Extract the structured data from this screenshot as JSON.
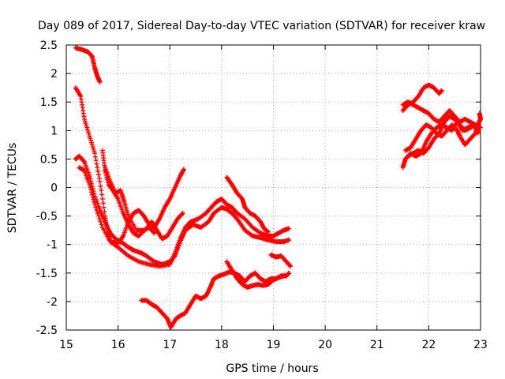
{
  "chart_data": {
    "type": "scatter",
    "title": "Day 089 of 2017, Sidereal Day-to-day VTEC variation (SDTVAR) for receiver kraw",
    "xlabel": "GPS time / hours",
    "ylabel": "SDTVAR / TECUs",
    "xlim": [
      15,
      23
    ],
    "ylim": [
      -2.5,
      2.5
    ],
    "xticks": [
      15,
      16,
      17,
      18,
      19,
      20,
      21,
      22,
      23
    ],
    "xtick_labels": [
      "15",
      "16",
      "17",
      "18",
      "19",
      "20",
      "21",
      "22",
      "23"
    ],
    "yticks": [
      -2.5,
      -2,
      -1.5,
      -1,
      -0.5,
      0,
      0.5,
      1,
      1.5,
      2,
      2.5
    ],
    "ytick_labels": [
      "-2.5",
      "-2",
      "-1.5",
      "-1",
      "-0.5",
      "0",
      "0.5",
      "1",
      "1.5",
      "2",
      "2.5"
    ],
    "grid": true,
    "marker": "+",
    "color": "#ff0000",
    "series": [
      {
        "name": "s1",
        "points": [
          [
            15.18,
            2.45
          ],
          [
            15.3,
            2.42
          ],
          [
            15.42,
            2.38
          ],
          [
            15.5,
            2.3
          ],
          [
            15.55,
            2.1
          ],
          [
            15.6,
            1.95
          ],
          [
            15.65,
            1.85
          ]
        ]
      },
      {
        "name": "s2",
        "points": [
          [
            15.18,
            1.75
          ],
          [
            15.28,
            1.6
          ],
          [
            15.35,
            1.2
          ],
          [
            15.45,
            0.9
          ],
          [
            15.55,
            0.6
          ],
          [
            15.65,
            0.1
          ],
          [
            15.75,
            -0.5
          ],
          [
            15.8,
            -0.8
          ],
          [
            15.85,
            -0.95
          ],
          [
            16.0,
            -0.98
          ],
          [
            16.1,
            -0.85
          ],
          [
            16.2,
            -0.6
          ],
          [
            16.3,
            -0.45
          ],
          [
            16.4,
            -0.4
          ],
          [
            16.5,
            -0.5
          ],
          [
            16.6,
            -0.65
          ],
          [
            16.7,
            -0.7
          ],
          [
            16.8,
            -0.55
          ],
          [
            16.9,
            -0.35
          ],
          [
            17.0,
            -0.2
          ],
          [
            17.1,
            0.0
          ],
          [
            17.2,
            0.2
          ],
          [
            17.27,
            0.32
          ]
        ]
      },
      {
        "name": "s3",
        "points": [
          [
            15.18,
            0.5
          ],
          [
            15.25,
            0.55
          ],
          [
            15.35,
            0.45
          ],
          [
            15.45,
            0.2
          ],
          [
            15.55,
            -0.15
          ],
          [
            15.65,
            -0.4
          ],
          [
            15.75,
            -0.6
          ],
          [
            15.85,
            -0.8
          ],
          [
            15.95,
            -0.9
          ],
          [
            16.1,
            -0.98
          ],
          [
            16.2,
            -1.05
          ],
          [
            16.3,
            -1.1
          ],
          [
            16.45,
            -1.15
          ],
          [
            16.55,
            -1.2
          ],
          [
            16.7,
            -1.3
          ],
          [
            16.85,
            -1.35
          ],
          [
            17.0,
            -1.3
          ],
          [
            17.1,
            -1.2
          ],
          [
            17.2,
            -0.95
          ],
          [
            17.3,
            -0.75
          ],
          [
            17.45,
            -0.65
          ],
          [
            17.6,
            -0.7
          ],
          [
            17.75,
            -0.6
          ],
          [
            17.85,
            -0.45
          ],
          [
            18.0,
            -0.35
          ],
          [
            18.1,
            -0.38
          ],
          [
            18.2,
            -0.45
          ],
          [
            18.3,
            -0.55
          ],
          [
            18.45,
            -0.75
          ],
          [
            18.6,
            -0.85
          ],
          [
            18.75,
            -0.88
          ],
          [
            18.9,
            -0.92
          ],
          [
            19.05,
            -0.95
          ],
          [
            19.2,
            -0.95
          ],
          [
            19.3,
            -0.92
          ]
        ]
      },
      {
        "name": "s4",
        "points": [
          [
            15.25,
            0.35
          ],
          [
            15.35,
            0.3
          ],
          [
            15.45,
            0.05
          ],
          [
            15.55,
            -0.3
          ],
          [
            15.7,
            -0.7
          ],
          [
            15.85,
            -0.95
          ],
          [
            16.0,
            -1.05
          ],
          [
            16.2,
            -1.2
          ],
          [
            16.4,
            -1.3
          ],
          [
            16.6,
            -1.35
          ],
          [
            16.8,
            -1.38
          ],
          [
            17.0,
            -1.35
          ],
          [
            17.1,
            -1.15
          ],
          [
            17.2,
            -0.9
          ],
          [
            17.3,
            -0.7
          ],
          [
            17.4,
            -0.6
          ],
          [
            17.55,
            -0.55
          ],
          [
            17.7,
            -0.45
          ],
          [
            17.8,
            -0.35
          ],
          [
            17.9,
            -0.25
          ],
          [
            18.0,
            -0.2
          ],
          [
            18.1,
            -0.3
          ],
          [
            18.2,
            -0.35
          ],
          [
            18.3,
            -0.45
          ],
          [
            18.45,
            -0.55
          ],
          [
            18.6,
            -0.7
          ],
          [
            18.75,
            -0.8
          ],
          [
            18.9,
            -0.85
          ],
          [
            19.0,
            -0.85
          ],
          [
            19.1,
            -0.8
          ],
          [
            19.2,
            -0.75
          ],
          [
            19.3,
            -0.72
          ]
        ]
      },
      {
        "name": "s5",
        "points": [
          [
            15.7,
            0.65
          ],
          [
            15.75,
            0.3
          ],
          [
            15.82,
            0.05
          ],
          [
            15.9,
            -0.05
          ],
          [
            16.0,
            -0.2
          ],
          [
            16.1,
            -0.45
          ],
          [
            16.2,
            -0.65
          ],
          [
            16.3,
            -0.8
          ],
          [
            16.4,
            -0.85
          ],
          [
            16.55,
            -0.72
          ],
          [
            16.65,
            -0.6
          ],
          [
            16.75,
            -0.75
          ],
          [
            16.85,
            -0.9
          ],
          [
            16.95,
            -0.85
          ],
          [
            17.05,
            -0.7
          ],
          [
            17.15,
            -0.55
          ],
          [
            17.25,
            -0.45
          ]
        ]
      },
      {
        "name": "s6",
        "points": [
          [
            15.75,
            0.35
          ],
          [
            15.85,
            0.1
          ],
          [
            15.95,
            -0.1
          ],
          [
            16.05,
            -0.05
          ],
          [
            16.12,
            -0.25
          ],
          [
            16.2,
            -0.5
          ],
          [
            16.35,
            -0.75
          ],
          [
            16.5,
            -0.75
          ],
          [
            16.6,
            -0.7
          ],
          [
            16.7,
            -0.8
          ]
        ]
      },
      {
        "name": "s7",
        "points": [
          [
            16.45,
            -1.98
          ],
          [
            16.55,
            -1.98
          ],
          [
            16.65,
            -2.05
          ],
          [
            16.75,
            -2.1
          ],
          [
            16.85,
            -2.2
          ],
          [
            16.95,
            -2.3
          ],
          [
            17.02,
            -2.45
          ],
          [
            17.12,
            -2.3
          ],
          [
            17.2,
            -2.25
          ],
          [
            17.3,
            -2.2
          ],
          [
            17.4,
            -2.05
          ],
          [
            17.5,
            -1.9
          ],
          [
            17.6,
            -1.95
          ],
          [
            17.7,
            -1.9
          ],
          [
            17.78,
            -1.75
          ],
          [
            17.85,
            -1.6
          ],
          [
            17.95,
            -1.55
          ],
          [
            18.05,
            -1.52
          ],
          [
            18.15,
            -1.48
          ],
          [
            18.25,
            -1.5
          ],
          [
            18.35,
            -1.55
          ],
          [
            18.45,
            -1.65
          ],
          [
            18.55,
            -1.55
          ],
          [
            18.65,
            -1.5
          ],
          [
            18.75,
            -1.6
          ],
          [
            18.85,
            -1.65
          ],
          [
            18.95,
            -1.6
          ],
          [
            19.05,
            -1.6
          ],
          [
            19.15,
            -1.55
          ],
          [
            19.25,
            -1.55
          ],
          [
            19.3,
            -1.5
          ]
        ]
      },
      {
        "name": "s8",
        "points": [
          [
            18.1,
            -1.3
          ],
          [
            18.2,
            -1.45
          ],
          [
            18.3,
            -1.6
          ],
          [
            18.4,
            -1.7
          ],
          [
            18.5,
            -1.75
          ],
          [
            18.6,
            -1.72
          ],
          [
            18.7,
            -1.7
          ],
          [
            18.8,
            -1.72
          ],
          [
            18.9,
            -1.7
          ],
          [
            19.0,
            -1.62
          ],
          [
            19.1,
            -1.58
          ],
          [
            19.2,
            -1.55
          ]
        ]
      },
      {
        "name": "s9",
        "points": [
          [
            18.1,
            0.18
          ],
          [
            18.2,
            0.05
          ],
          [
            18.3,
            -0.1
          ],
          [
            18.4,
            -0.2
          ],
          [
            18.45,
            -0.35
          ],
          [
            18.55,
            -0.45
          ],
          [
            18.65,
            -0.5
          ],
          [
            18.75,
            -0.6
          ],
          [
            18.82,
            -0.72
          ],
          [
            18.9,
            -0.78
          ]
        ]
      },
      {
        "name": "s10",
        "points": [
          [
            18.95,
            -1.18
          ],
          [
            19.05,
            -1.22
          ],
          [
            19.15,
            -1.2
          ],
          [
            19.25,
            -1.3
          ],
          [
            19.33,
            -1.38
          ]
        ]
      },
      {
        "name": "s11",
        "points": [
          [
            21.5,
            1.35
          ],
          [
            21.6,
            1.45
          ],
          [
            21.7,
            1.5
          ],
          [
            21.8,
            1.6
          ],
          [
            21.9,
            1.75
          ],
          [
            22.0,
            1.8
          ],
          [
            22.1,
            1.75
          ],
          [
            22.2,
            1.65
          ],
          [
            22.25,
            1.7
          ]
        ]
      },
      {
        "name": "s12",
        "points": [
          [
            21.5,
            1.45
          ],
          [
            21.6,
            1.5
          ],
          [
            21.7,
            1.45
          ],
          [
            21.8,
            1.4
          ],
          [
            21.9,
            1.35
          ],
          [
            22.0,
            1.3
          ],
          [
            22.1,
            1.2
          ],
          [
            22.2,
            1.15
          ],
          [
            22.3,
            1.25
          ],
          [
            22.4,
            1.35
          ],
          [
            22.5,
            1.25
          ],
          [
            22.6,
            1.15
          ],
          [
            22.7,
            1.2
          ],
          [
            22.8,
            1.15
          ],
          [
            22.9,
            1.1
          ],
          [
            23.0,
            1.05
          ]
        ]
      },
      {
        "name": "s13",
        "points": [
          [
            21.5,
            0.35
          ],
          [
            21.55,
            0.5
          ],
          [
            21.65,
            0.6
          ],
          [
            21.75,
            0.55
          ],
          [
            21.85,
            0.6
          ],
          [
            21.95,
            0.8
          ],
          [
            22.05,
            0.95
          ],
          [
            22.15,
            1.05
          ],
          [
            22.25,
            1.1
          ],
          [
            22.35,
            1.05
          ],
          [
            22.45,
            1.0
          ],
          [
            22.55,
            1.15
          ],
          [
            22.65,
            1.0
          ],
          [
            22.75,
            1.05
          ],
          [
            22.85,
            1.1
          ],
          [
            22.95,
            1.0
          ]
        ]
      },
      {
        "name": "s14",
        "points": [
          [
            21.55,
            0.65
          ],
          [
            21.65,
            0.7
          ],
          [
            21.75,
            0.85
          ],
          [
            21.85,
            1.0
          ],
          [
            21.95,
            1.1
          ],
          [
            22.05,
            1.05
          ],
          [
            22.15,
            0.95
          ],
          [
            22.25,
            0.9
          ],
          [
            22.35,
            1.0
          ],
          [
            22.45,
            1.1
          ],
          [
            22.55,
            1.0
          ],
          [
            22.6,
            0.9
          ],
          [
            22.7,
            0.75
          ],
          [
            22.8,
            0.85
          ],
          [
            22.9,
            0.95
          ],
          [
            22.95,
            1.1
          ],
          [
            23.0,
            1.2
          ],
          [
            22.98,
            1.3
          ]
        ]
      },
      {
        "name": "s15",
        "points": [
          [
            21.6,
            0.55
          ],
          [
            21.7,
            0.6
          ],
          [
            21.8,
            0.65
          ],
          [
            21.9,
            0.6
          ],
          [
            22.0,
            0.7
          ],
          [
            22.1,
            0.85
          ],
          [
            22.2,
            0.95
          ],
          [
            22.3,
            1.15
          ],
          [
            22.4,
            1.25
          ],
          [
            22.5,
            1.2
          ],
          [
            22.6,
            1.1
          ],
          [
            22.7,
            1.0
          ],
          [
            22.8,
            1.05
          ],
          [
            22.9,
            1.1
          ],
          [
            22.95,
            0.95
          ]
        ]
      }
    ]
  }
}
